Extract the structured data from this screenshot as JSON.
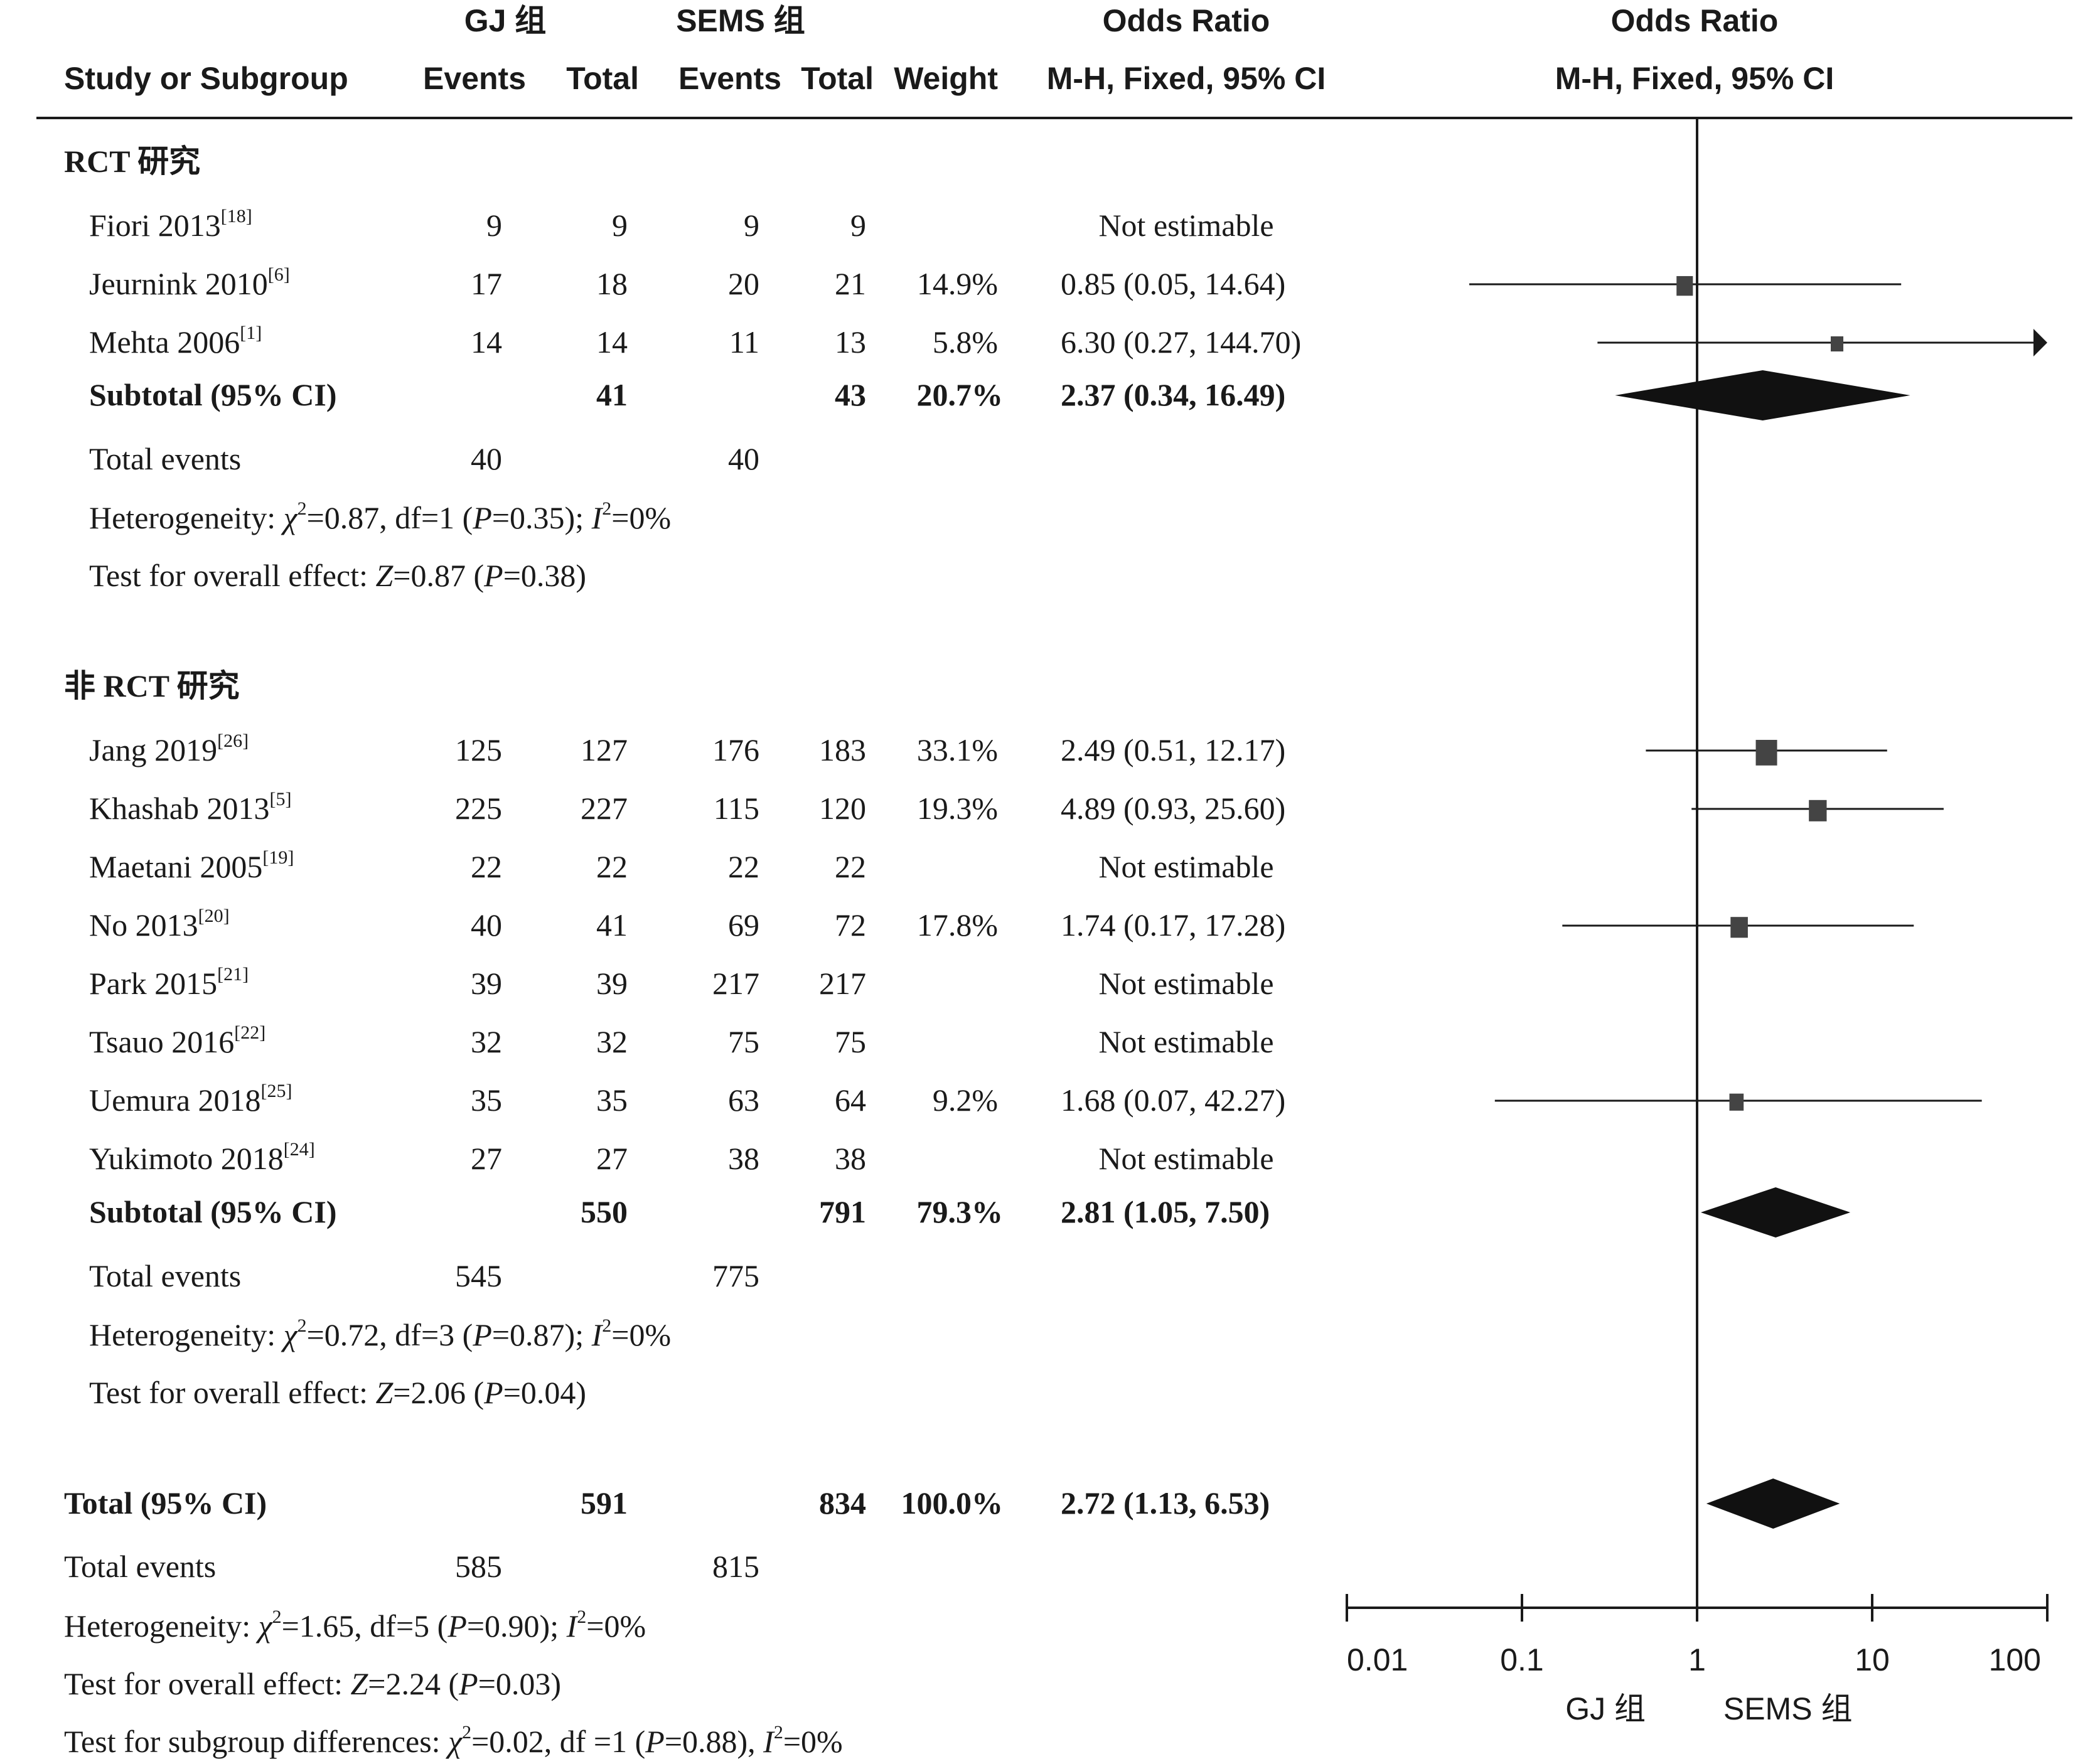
{
  "header": {
    "group1": "GJ 组",
    "group2": "SEMS 组",
    "study_col": "Study or Subgroup",
    "events": "Events",
    "total": "Total",
    "weight": "Weight",
    "or_title": "Odds Ratio",
    "or_method": "M-H, Fixed, 95% CI",
    "plot_title": "Odds Ratio",
    "plot_method": "M-H, Fixed, 95% CI"
  },
  "subgroups": [
    {
      "label": "RCT 研究",
      "studies": [
        {
          "name": "Fiori 2013",
          "ref": "[18]",
          "e1": "9",
          "t1": "9",
          "e2": "9",
          "t2": "9",
          "weight": "",
          "or_text": "Not estimable"
        },
        {
          "name": "Jeurnink 2010",
          "ref": "[6]",
          "e1": "17",
          "t1": "18",
          "e2": "20",
          "t2": "21",
          "weight": "14.9%",
          "or_text": "0.85 (0.05, 14.64)"
        },
        {
          "name": "Mehta 2006",
          "ref": "[1]",
          "e1": "14",
          "t1": "14",
          "e2": "11",
          "t2": "13",
          "weight": "5.8%",
          "or_text": "6.30 (0.27, 144.70)"
        }
      ],
      "subtotal": {
        "label": "Subtotal (95% CI)",
        "t1": "41",
        "t2": "43",
        "weight": "20.7%",
        "or_text": "2.37 (0.34, 16.49)"
      },
      "total_events": {
        "label": "Total events",
        "e1": "40",
        "e2": "40"
      },
      "heterogeneity": {
        "pre": "Heterogeneity: ",
        "chi": "χ",
        "sq": "2",
        "mid1": "=0.87, df=1 (",
        "p": "P",
        "mid2": "=0.35); ",
        "i": "I",
        "sq2": "2",
        "post": "=0%"
      },
      "overall": {
        "pre": "Test for overall effect: ",
        "z": "Z",
        "mid1": "=0.87 (",
        "p": "P",
        "post": "=0.38)"
      }
    },
    {
      "label": "非 RCT 研究",
      "studies": [
        {
          "name": "Jang 2019",
          "ref": "[26]",
          "e1": "125",
          "t1": "127",
          "e2": "176",
          "t2": "183",
          "weight": "33.1%",
          "or_text": "2.49 (0.51, 12.17)"
        },
        {
          "name": "Khashab 2013",
          "ref": "[5]",
          "e1": "225",
          "t1": "227",
          "e2": "115",
          "t2": "120",
          "weight": "19.3%",
          "or_text": "4.89 (0.93, 25.60)"
        },
        {
          "name": "Maetani 2005",
          "ref": "[19]",
          "e1": "22",
          "t1": "22",
          "e2": "22",
          "t2": "22",
          "weight": "",
          "or_text": "Not estimable"
        },
        {
          "name": "No 2013",
          "ref": "[20]",
          "e1": "40",
          "t1": "41",
          "e2": "69",
          "t2": "72",
          "weight": "17.8%",
          "or_text": "1.74 (0.17, 17.28)"
        },
        {
          "name": "Park 2015",
          "ref": "[21]",
          "e1": "39",
          "t1": "39",
          "e2": "217",
          "t2": "217",
          "weight": "",
          "or_text": "Not estimable"
        },
        {
          "name": "Tsauo 2016",
          "ref": "[22]",
          "e1": "32",
          "t1": "32",
          "e2": "75",
          "t2": "75",
          "weight": "",
          "or_text": "Not estimable"
        },
        {
          "name": "Uemura 2018",
          "ref": "[25]",
          "e1": "35",
          "t1": "35",
          "e2": "63",
          "t2": "64",
          "weight": "9.2%",
          "or_text": "1.68 (0.07, 42.27)"
        },
        {
          "name": "Yukimoto 2018",
          "ref": "[24]",
          "e1": "27",
          "t1": "27",
          "e2": "38",
          "t2": "38",
          "weight": "",
          "or_text": "Not estimable"
        }
      ],
      "subtotal": {
        "label": "Subtotal (95% CI)",
        "t1": "550",
        "t2": "791",
        "weight": "79.3%",
        "or_text": "2.81 (1.05, 7.50)"
      },
      "total_events": {
        "label": "Total events",
        "e1": "545",
        "e2": "775"
      },
      "heterogeneity": {
        "pre": "Heterogeneity: ",
        "chi": "χ",
        "sq": "2",
        "mid1": "=0.72, df=3 (",
        "p": "P",
        "mid2": "=0.87); ",
        "i": "I",
        "sq2": "2",
        "post": "=0%"
      },
      "overall": {
        "pre": "Test for overall effect: ",
        "z": "Z",
        "mid1": "=2.06 (",
        "p": "P",
        "post": "=0.04)"
      }
    }
  ],
  "total": {
    "label": "Total (95% CI)",
    "t1": "591",
    "t2": "834",
    "weight": "100.0%",
    "or_text": "2.72 (1.13, 6.53)"
  },
  "total_events": {
    "label": "Total events",
    "e1": "585",
    "e2": "815"
  },
  "heterogeneity": {
    "pre": "Heterogeneity: ",
    "chi": "χ",
    "sq": "2",
    "mid1": "=1.65, df=5 (",
    "p": "P",
    "mid2": "=0.90); ",
    "i": "I",
    "sq2": "2",
    "post": "=0%"
  },
  "overall": {
    "pre": "Test for overall effect: ",
    "z": "Z",
    "mid1": "=2.24 (",
    "p": "P",
    "post": "=0.03)"
  },
  "subgroup_diff": {
    "pre": "Test for subgroup differences: ",
    "chi": "χ",
    "sq": "2",
    "mid1": "=0.02, df =1 (",
    "p": "P",
    "mid2": "=0.88), ",
    "i": "I",
    "sq2": "2",
    "post": "=0%"
  },
  "chart_data": {
    "type": "forest",
    "x_scale": "log",
    "xlim": [
      0.01,
      100
    ],
    "ticks": [
      0.01,
      0.1,
      1,
      10,
      100
    ],
    "tick_labels": [
      "0.01",
      "0.1",
      "1",
      "10",
      "100"
    ],
    "favours_left": "GJ 组",
    "favours_right": "SEMS 组",
    "studies": [
      {
        "study": "Jeurnink 2010",
        "or": 0.85,
        "lo": 0.05,
        "hi": 14.64,
        "weight": 14.9
      },
      {
        "study": "Mehta 2006",
        "or": 6.3,
        "lo": 0.27,
        "hi": 144.7,
        "weight": 5.8
      },
      {
        "study": "Jang 2019",
        "or": 2.49,
        "lo": 0.51,
        "hi": 12.17,
        "weight": 33.1
      },
      {
        "study": "Khashab 2013",
        "or": 4.89,
        "lo": 0.93,
        "hi": 25.6,
        "weight": 19.3
      },
      {
        "study": "No 2013",
        "or": 1.74,
        "lo": 0.17,
        "hi": 17.28,
        "weight": 17.8
      },
      {
        "study": "Uemura 2018",
        "or": 1.68,
        "lo": 0.07,
        "hi": 42.27,
        "weight": 9.2
      }
    ],
    "pooled": [
      {
        "label": "RCT 研究 Subtotal",
        "or": 2.37,
        "lo": 0.34,
        "hi": 16.49
      },
      {
        "label": "非 RCT 研究 Subtotal",
        "or": 2.81,
        "lo": 1.05,
        "hi": 7.5
      },
      {
        "label": "Total",
        "or": 2.72,
        "lo": 1.13,
        "hi": 6.53
      }
    ]
  }
}
